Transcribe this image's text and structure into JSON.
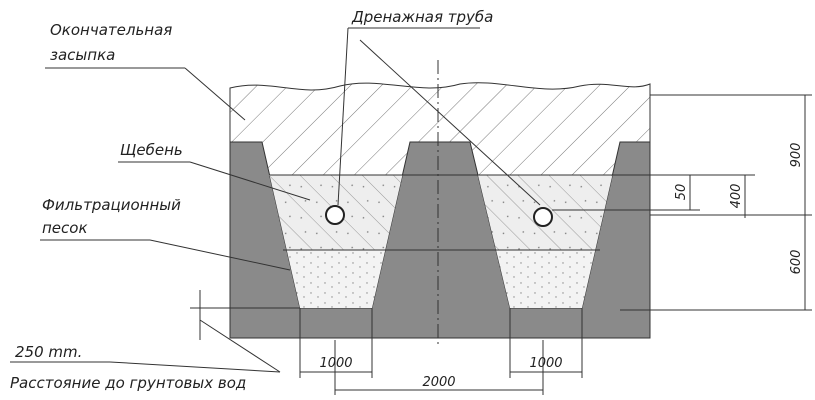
{
  "labels": {
    "backfill": [
      "Окончательная",
      "засыпка"
    ],
    "pipe": "Дренажная труба",
    "gravel": "Щебень",
    "sand": [
      "Фильтрационный",
      "песок"
    ],
    "depth": "250 mm.",
    "groundwater": "Расстояние до грунтовых вод"
  },
  "dimensions": {
    "d900": "900",
    "d400": "400",
    "d50": "50",
    "d600": "600",
    "left_width": "1000",
    "right_width": "1000",
    "spacing": "2000"
  }
}
